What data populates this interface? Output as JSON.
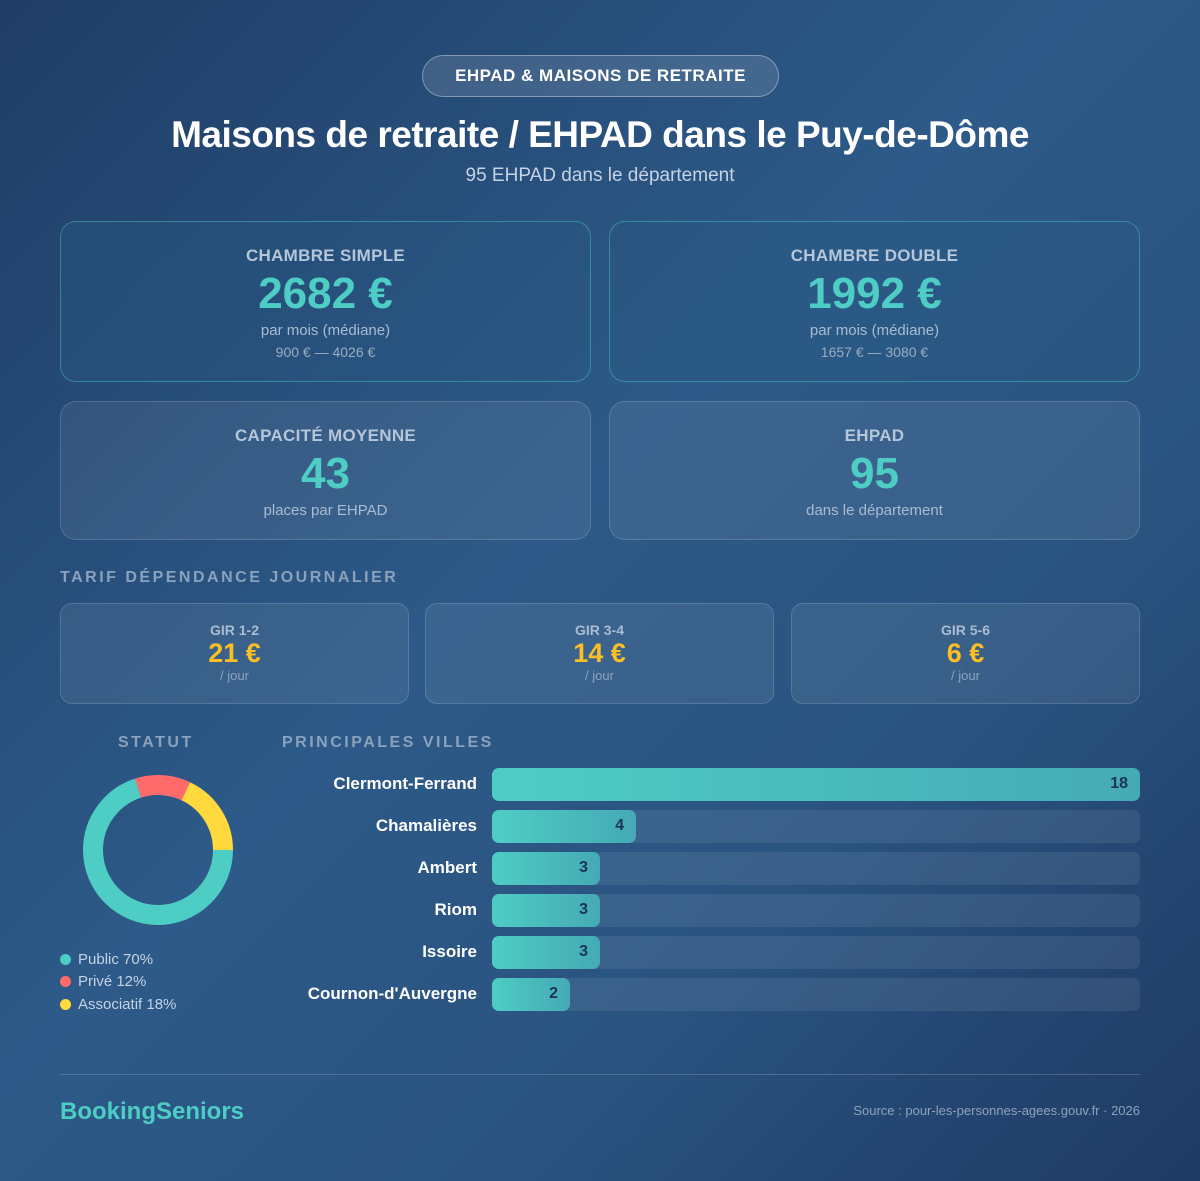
{
  "badge": "EHPAD & MAISONS DE RETRAITE",
  "title": "Maisons de retraite / EHPAD dans le Puy-de-Dôme",
  "subtitle": "95 EHPAD dans le département",
  "cards": [
    {
      "label": "CHAMBRE SIMPLE",
      "value": "2682 €",
      "sub": "par mois (médiane)",
      "range": "900 € — 4026 €"
    },
    {
      "label": "CHAMBRE DOUBLE",
      "value": "1992 €",
      "sub": "par mois (médiane)",
      "range": "1657 € — 3080 €"
    },
    {
      "label": "CAPACITÉ MOYENNE",
      "value": "43",
      "sub": "places par EHPAD"
    },
    {
      "label": "EHPAD",
      "value": "95",
      "sub": "dans le département"
    }
  ],
  "tarif": {
    "title": "TARIF DÉPENDANCE JOURNALIER",
    "items": [
      {
        "label": "GIR 1-2",
        "value": "21 €",
        "unit": "/ jour"
      },
      {
        "label": "GIR 3-4",
        "value": "14 €",
        "unit": "/ jour"
      },
      {
        "label": "GIR 5-6",
        "value": "6 €",
        "unit": "/ jour"
      }
    ]
  },
  "chart_data": [
    {
      "type": "pie",
      "title": "STATUT",
      "donut": true,
      "slices": [
        {
          "label": "Public 70%",
          "value": 70,
          "color": "#4ecdc4"
        },
        {
          "label": "Privé 12%",
          "value": 12,
          "color": "#ff6b6b"
        },
        {
          "label": "Associatif 18%",
          "value": 18,
          "color": "#ffd93d"
        }
      ]
    },
    {
      "type": "bar",
      "orientation": "horizontal",
      "title": "PRINCIPALES VILLES",
      "categories": [
        "Clermont-Ferrand",
        "Chamalières",
        "Ambert",
        "Riom",
        "Issoire",
        "Cournon-d'Auvergne"
      ],
      "values": [
        18,
        4,
        3,
        3,
        3,
        2
      ],
      "xlim": [
        0,
        18
      ],
      "color": "#4ecdc4"
    }
  ],
  "footer": {
    "brand": "BookingSeniors",
    "source": "Source : pour-les-personnes-agees.gouv.fr · 2026"
  }
}
